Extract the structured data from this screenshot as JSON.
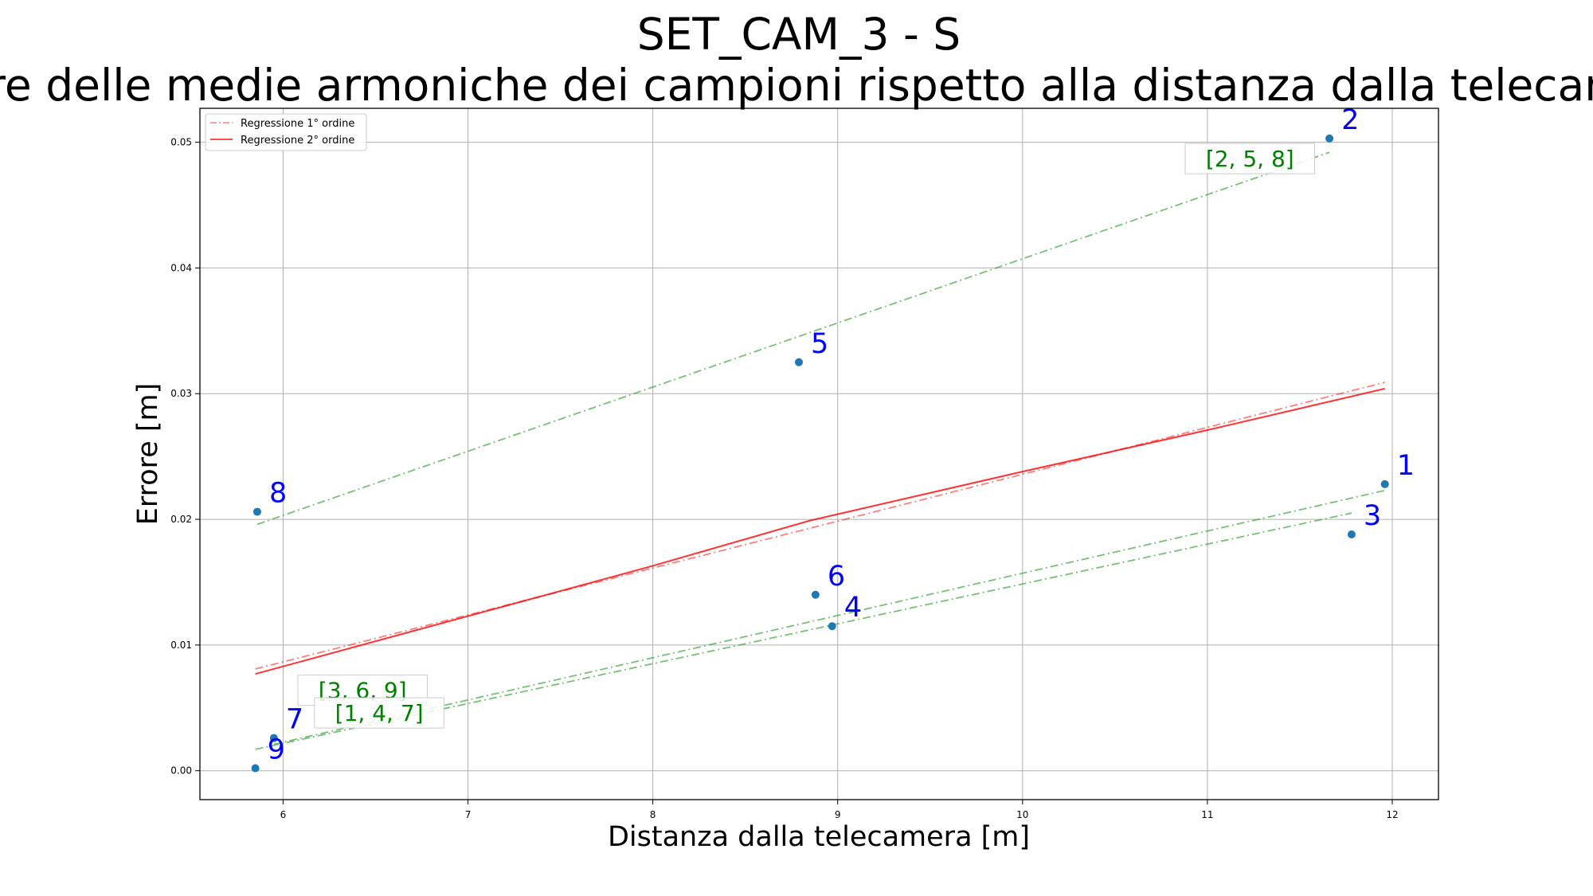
{
  "chart_data": {
    "type": "scatter",
    "title": "SET_CAM_3 - S",
    "subtitle": "Errore delle medie armoniche dei campioni rispetto alla distanza dalla telecamera",
    "xlabel": "Distanza dalla telecamera [m]",
    "ylabel": "Errore [m]",
    "xlim": [
      5.55,
      12.25
    ],
    "ylim": [
      -0.0023,
      0.0527
    ],
    "xticks": [
      6,
      7,
      8,
      9,
      10,
      11,
      12
    ],
    "yticks": [
      0.0,
      0.01,
      0.02,
      0.03,
      0.04,
      0.05
    ],
    "grid": true,
    "legend_position": "upper-left",
    "points": [
      {
        "label": "1",
        "x": 11.96,
        "y": 0.0228
      },
      {
        "label": "2",
        "x": 11.66,
        "y": 0.0503
      },
      {
        "label": "3",
        "x": 11.78,
        "y": 0.0188
      },
      {
        "label": "4",
        "x": 8.97,
        "y": 0.0115
      },
      {
        "label": "5",
        "x": 8.79,
        "y": 0.0325
      },
      {
        "label": "6",
        "x": 8.88,
        "y": 0.014
      },
      {
        "label": "7",
        "x": 5.95,
        "y": 0.0026
      },
      {
        "label": "8",
        "x": 5.86,
        "y": 0.0206
      },
      {
        "label": "9",
        "x": 5.85,
        "y": 0.0002
      }
    ],
    "point_color": "#1f77b4",
    "series": [
      {
        "name": "Regressione 1° ordine",
        "style": "dashdot",
        "color": "#ff0000",
        "x": [
          5.85,
          11.96
        ],
        "y": [
          0.0081,
          0.0309
        ]
      },
      {
        "name": "Regressione 2° ordine",
        "style": "solid",
        "color": "#ff0000",
        "x": [
          5.85,
          7.0,
          8.0,
          8.85,
          10.0,
          11.0,
          11.96
        ],
        "y": [
          0.0077,
          0.0123,
          0.0163,
          0.0199,
          0.0238,
          0.0271,
          0.0304
        ]
      }
    ],
    "groups": [
      {
        "label": "[2, 5, 8]",
        "color": "#2ca02c",
        "x": [
          5.86,
          11.66
        ],
        "y": [
          0.0196,
          0.0492
        ],
        "label_at": [
          11.23,
          0.0487
        ]
      },
      {
        "label": "[3, 6, 9]",
        "color": "#2ca02c",
        "x": [
          5.85,
          11.78
        ],
        "y": [
          0.0017,
          0.0205
        ],
        "label_at": [
          6.43,
          0.0064
        ]
      },
      {
        "label": "[1, 4, 7]",
        "color": "#2ca02c",
        "x": [
          5.95,
          11.96
        ],
        "y": [
          0.0021,
          0.0223
        ],
        "label_at": [
          6.52,
          0.0046
        ]
      }
    ]
  }
}
